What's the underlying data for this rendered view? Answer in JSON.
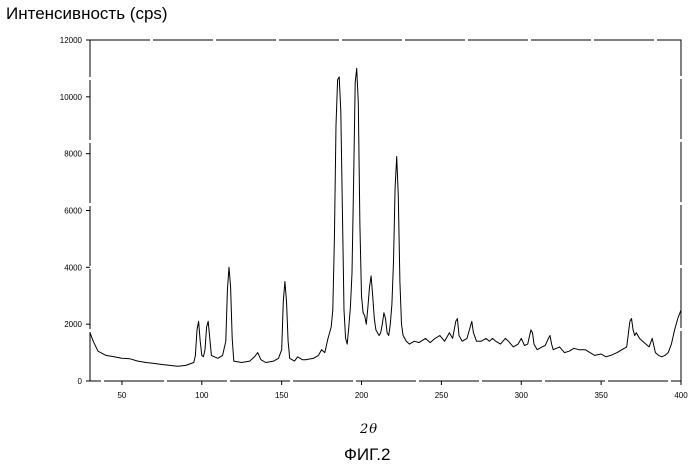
{
  "chart_data": {
    "type": "line",
    "ylabel": "Интенсивность (cps)",
    "xlabel": "2θ",
    "caption": "ФИГ.2",
    "xlim": [
      30,
      400
    ],
    "ylim": [
      0,
      12000
    ],
    "x_ticks": [
      50,
      100,
      150,
      200,
      250,
      300,
      350,
      400
    ],
    "y_ticks": [
      0,
      2000,
      4000,
      6000,
      8000,
      10000,
      12000
    ],
    "grid": false,
    "series": [
      {
        "color": "#000000",
        "points": [
          [
            30,
            1700
          ],
          [
            32,
            1400
          ],
          [
            35,
            1050
          ],
          [
            40,
            900
          ],
          [
            45,
            850
          ],
          [
            50,
            800
          ],
          [
            55,
            780
          ],
          [
            60,
            700
          ],
          [
            65,
            650
          ],
          [
            70,
            620
          ],
          [
            75,
            580
          ],
          [
            80,
            550
          ],
          [
            85,
            520
          ],
          [
            90,
            550
          ],
          [
            95,
            650
          ],
          [
            96,
            900
          ],
          [
            97,
            1800
          ],
          [
            98,
            2100
          ],
          [
            99,
            1400
          ],
          [
            100,
            900
          ],
          [
            101,
            850
          ],
          [
            102,
            1100
          ],
          [
            103,
            1900
          ],
          [
            104,
            2100
          ],
          [
            105,
            1500
          ],
          [
            106,
            900
          ],
          [
            110,
            800
          ],
          [
            113,
            900
          ],
          [
            115,
            1400
          ],
          [
            116,
            3200
          ],
          [
            117,
            4000
          ],
          [
            118,
            3300
          ],
          [
            119,
            1500
          ],
          [
            120,
            700
          ],
          [
            125,
            650
          ],
          [
            130,
            700
          ],
          [
            133,
            850
          ],
          [
            135,
            1000
          ],
          [
            137,
            750
          ],
          [
            140,
            650
          ],
          [
            145,
            700
          ],
          [
            148,
            800
          ],
          [
            150,
            1100
          ],
          [
            151,
            2800
          ],
          [
            152,
            3500
          ],
          [
            153,
            2800
          ],
          [
            154,
            1400
          ],
          [
            155,
            800
          ],
          [
            158,
            700
          ],
          [
            160,
            850
          ],
          [
            163,
            750
          ],
          [
            165,
            750
          ],
          [
            170,
            800
          ],
          [
            173,
            900
          ],
          [
            175,
            1100
          ],
          [
            177,
            1000
          ],
          [
            179,
            1500
          ],
          [
            181,
            1900
          ],
          [
            182,
            2500
          ],
          [
            183,
            5000
          ],
          [
            184,
            9000
          ],
          [
            185,
            10600
          ],
          [
            186,
            10700
          ],
          [
            187,
            9500
          ],
          [
            188,
            6000
          ],
          [
            189,
            2500
          ],
          [
            190,
            1500
          ],
          [
            191,
            1300
          ],
          [
            192,
            1900
          ],
          [
            193,
            2600
          ],
          [
            194,
            3800
          ],
          [
            195,
            7000
          ],
          [
            196,
            10500
          ],
          [
            197,
            11000
          ],
          [
            198,
            9800
          ],
          [
            199,
            5500
          ],
          [
            200,
            3000
          ],
          [
            201,
            2400
          ],
          [
            202,
            2300
          ],
          [
            203,
            2000
          ],
          [
            204,
            2600
          ],
          [
            205,
            3300
          ],
          [
            206,
            3700
          ],
          [
            207,
            3000
          ],
          [
            208,
            2200
          ],
          [
            209,
            1800
          ],
          [
            210,
            1700
          ],
          [
            211,
            1600
          ],
          [
            212,
            1700
          ],
          [
            213,
            2000
          ],
          [
            214,
            2400
          ],
          [
            215,
            2200
          ],
          [
            216,
            1700
          ],
          [
            217,
            1600
          ],
          [
            218,
            2000
          ],
          [
            219,
            2700
          ],
          [
            220,
            4200
          ],
          [
            221,
            6800
          ],
          [
            222,
            7900
          ],
          [
            223,
            6500
          ],
          [
            224,
            3500
          ],
          [
            225,
            2000
          ],
          [
            226,
            1600
          ],
          [
            228,
            1400
          ],
          [
            230,
            1300
          ],
          [
            233,
            1400
          ],
          [
            236,
            1350
          ],
          [
            240,
            1500
          ],
          [
            243,
            1350
          ],
          [
            246,
            1500
          ],
          [
            249,
            1600
          ],
          [
            252,
            1400
          ],
          [
            255,
            1700
          ],
          [
            257,
            1500
          ],
          [
            259,
            2100
          ],
          [
            260,
            2200
          ],
          [
            261,
            1600
          ],
          [
            263,
            1400
          ],
          [
            266,
            1500
          ],
          [
            268,
            1900
          ],
          [
            269,
            2100
          ],
          [
            270,
            1700
          ],
          [
            272,
            1400
          ],
          [
            275,
            1400
          ],
          [
            278,
            1500
          ],
          [
            280,
            1400
          ],
          [
            282,
            1500
          ],
          [
            284,
            1400
          ],
          [
            287,
            1300
          ],
          [
            290,
            1500
          ],
          [
            292,
            1400
          ],
          [
            295,
            1200
          ],
          [
            298,
            1300
          ],
          [
            300,
            1500
          ],
          [
            302,
            1250
          ],
          [
            304,
            1300
          ],
          [
            306,
            1800
          ],
          [
            307,
            1700
          ],
          [
            308,
            1300
          ],
          [
            310,
            1100
          ],
          [
            313,
            1200
          ],
          [
            315,
            1250
          ],
          [
            317,
            1500
          ],
          [
            318,
            1600
          ],
          [
            319,
            1300
          ],
          [
            320,
            1100
          ],
          [
            324,
            1200
          ],
          [
            327,
            1000
          ],
          [
            330,
            1050
          ],
          [
            333,
            1150
          ],
          [
            336,
            1100
          ],
          [
            340,
            1100
          ],
          [
            343,
            1000
          ],
          [
            346,
            900
          ],
          [
            350,
            950
          ],
          [
            353,
            850
          ],
          [
            356,
            900
          ],
          [
            360,
            1000
          ],
          [
            363,
            1100
          ],
          [
            366,
            1200
          ],
          [
            368,
            2100
          ],
          [
            369,
            2200
          ],
          [
            370,
            1800
          ],
          [
            371,
            1600
          ],
          [
            372,
            1700
          ],
          [
            374,
            1500
          ],
          [
            376,
            1400
          ],
          [
            378,
            1300
          ],
          [
            380,
            1200
          ],
          [
            382,
            1500
          ],
          [
            384,
            1000
          ],
          [
            386,
            900
          ],
          [
            388,
            850
          ],
          [
            390,
            900
          ],
          [
            392,
            1000
          ],
          [
            394,
            1300
          ],
          [
            396,
            1800
          ],
          [
            398,
            2200
          ],
          [
            400,
            2500
          ]
        ]
      }
    ]
  }
}
